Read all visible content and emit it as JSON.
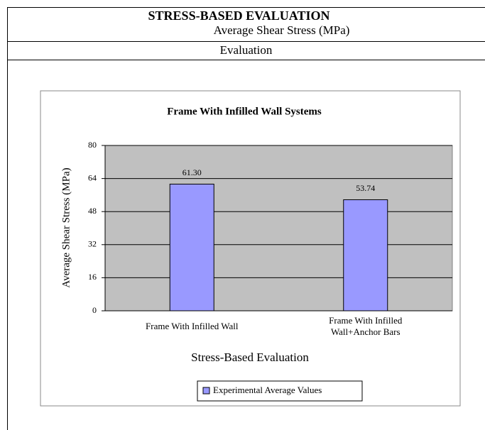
{
  "header": {
    "title": "STRESS-BASED EVALUATION",
    "subtitle": "Average Shear Stress  (MPa)",
    "section": "Evaluation"
  },
  "chart_data": {
    "type": "bar",
    "title": "Frame With Infilled Wall Systems",
    "y_label": "Average Shear Stress  (MPa)",
    "x_label": "Stress-Based Evaluation",
    "categories": [
      "Frame With Infilled Wall",
      "Frame With Infilled Wall+Anchor Bars"
    ],
    "series": [
      {
        "name": "Experimental Average Values",
        "color": "#9999ff",
        "values": [
          61.3,
          53.74
        ],
        "value_labels": [
          "61.30",
          "53.74"
        ]
      }
    ],
    "ylim": [
      0,
      80
    ],
    "yticks": [
      0,
      16,
      32,
      48,
      64,
      80
    ],
    "grid": true,
    "legend": "bottom"
  }
}
